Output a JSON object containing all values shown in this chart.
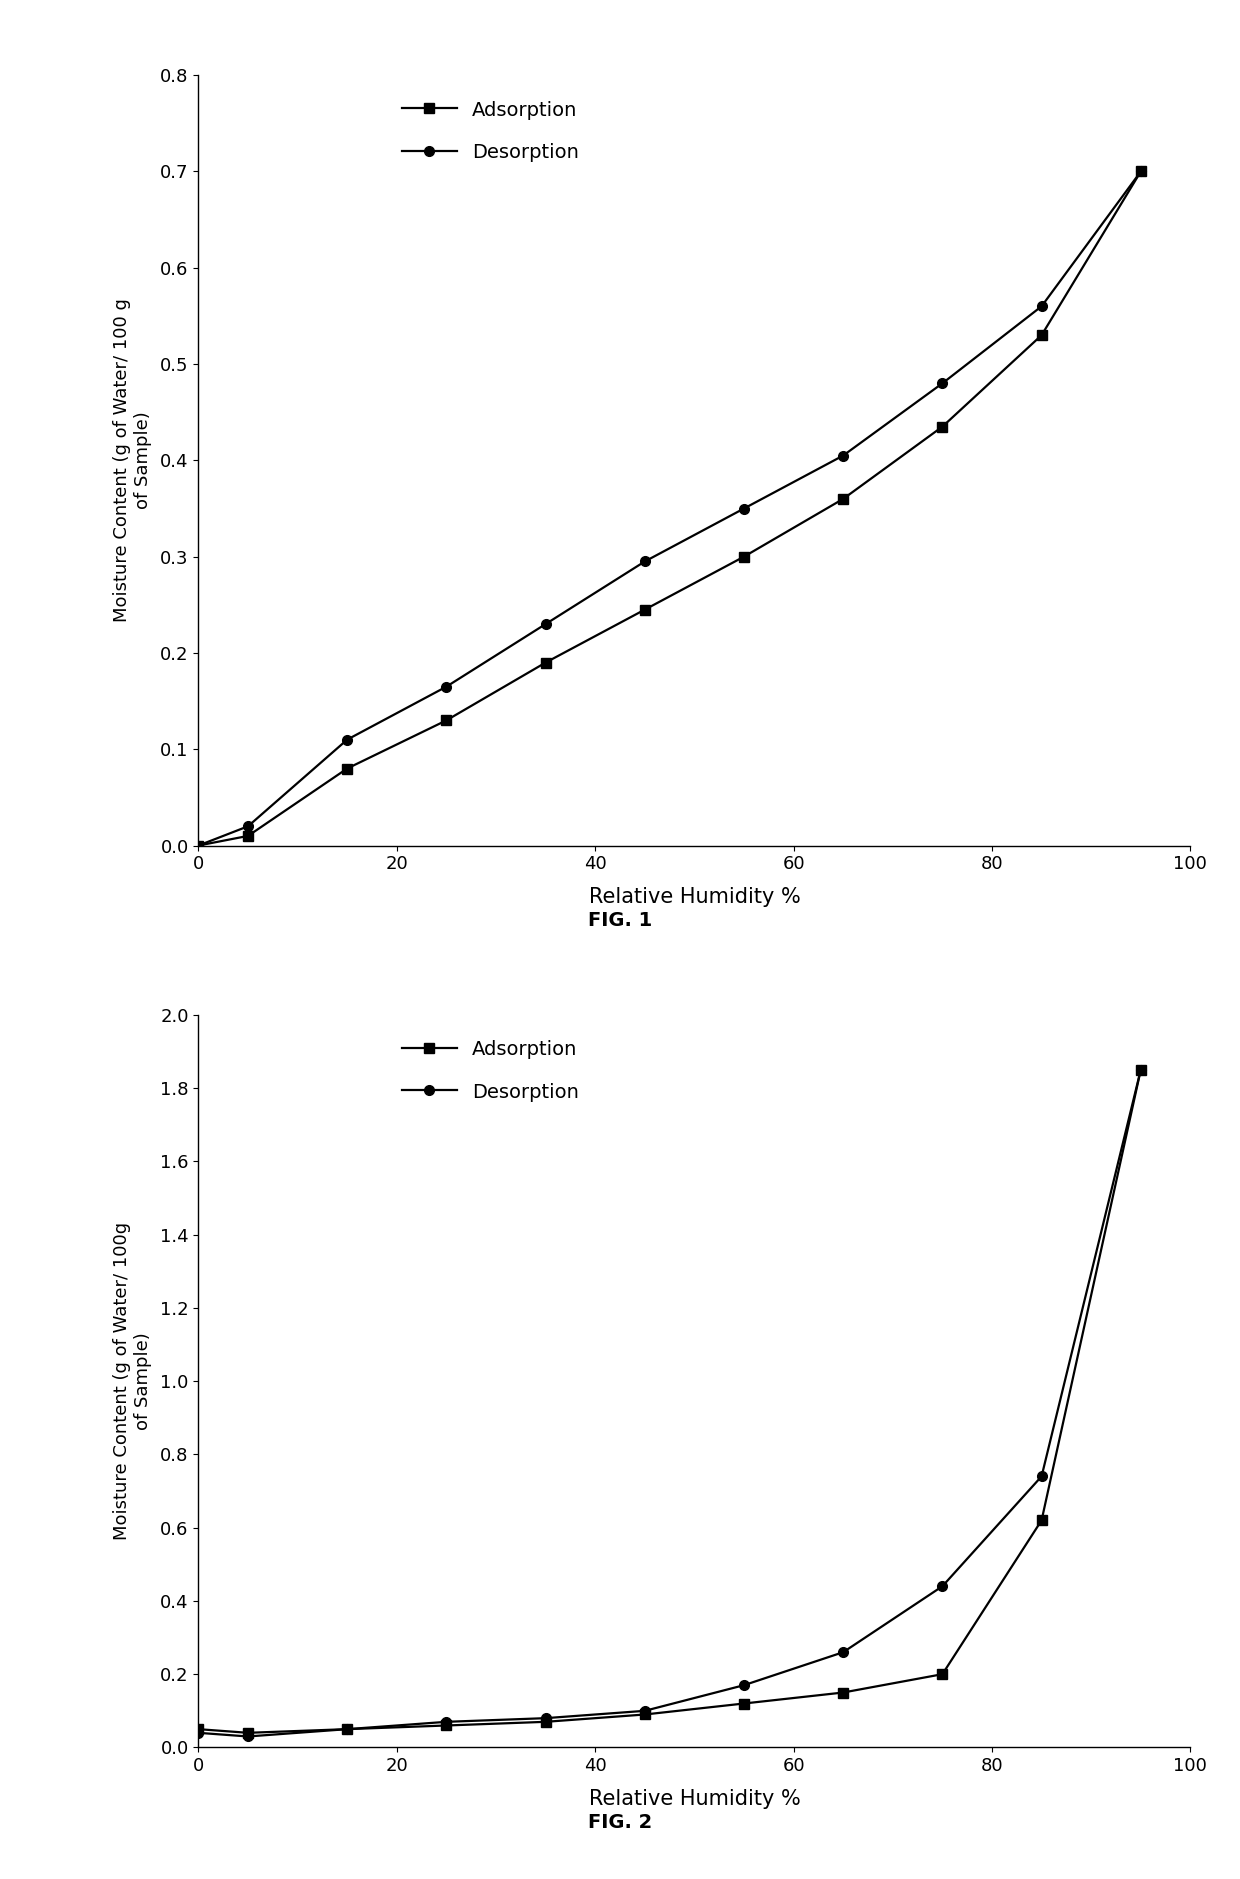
{
  "fig1": {
    "adsorption_x": [
      0,
      5,
      15,
      25,
      35,
      45,
      55,
      65,
      75,
      85,
      95
    ],
    "adsorption_y": [
      0,
      0.01,
      0.08,
      0.13,
      0.19,
      0.245,
      0.3,
      0.36,
      0.435,
      0.53,
      0.7
    ],
    "desorption_x": [
      0,
      5,
      15,
      25,
      35,
      45,
      55,
      65,
      75,
      85,
      95
    ],
    "desorption_y": [
      0,
      0.02,
      0.11,
      0.165,
      0.23,
      0.295,
      0.35,
      0.405,
      0.48,
      0.56,
      0.7
    ],
    "ylabel": "Moisture Content (g of Water/ 100 g\nof Sample)",
    "xlabel": "Relative Humidity %",
    "figname": "FIG. 1",
    "ylim": [
      0,
      0.8
    ],
    "yticks": [
      0,
      0.1,
      0.2,
      0.3,
      0.4,
      0.5,
      0.6,
      0.7,
      0.8
    ],
    "xlim": [
      0,
      100
    ],
    "xticks": [
      0,
      20,
      40,
      60,
      80,
      100
    ]
  },
  "fig2": {
    "adsorption_x": [
      0,
      5,
      15,
      25,
      35,
      45,
      55,
      65,
      75,
      85,
      95
    ],
    "adsorption_y": [
      0.05,
      0.04,
      0.05,
      0.06,
      0.07,
      0.09,
      0.12,
      0.15,
      0.2,
      0.62,
      1.85
    ],
    "desorption_x": [
      0,
      5,
      15,
      25,
      35,
      45,
      55,
      65,
      75,
      85,
      95
    ],
    "desorption_y": [
      0.04,
      0.03,
      0.05,
      0.07,
      0.08,
      0.1,
      0.17,
      0.26,
      0.44,
      0.74,
      1.85
    ],
    "ylabel": "Moisture Content (g of Water/ 100g\nof Sample)",
    "xlabel": "Relative Humidity %",
    "figname": "FIG. 2",
    "ylim": [
      0,
      2.0
    ],
    "yticks": [
      0,
      0.2,
      0.4,
      0.6,
      0.8,
      1.0,
      1.2,
      1.4,
      1.6,
      1.8,
      2.0
    ],
    "xlim": [
      0,
      100
    ],
    "xticks": [
      0,
      20,
      40,
      60,
      80,
      100
    ]
  },
  "line_color": "#000000",
  "adsorption_marker": "s",
  "desorption_marker": "o",
  "adsorption_label": "Adsorption",
  "desorption_label": "Desorption",
  "marker_size": 7,
  "linewidth": 1.6,
  "font_family": "DejaVu Sans"
}
